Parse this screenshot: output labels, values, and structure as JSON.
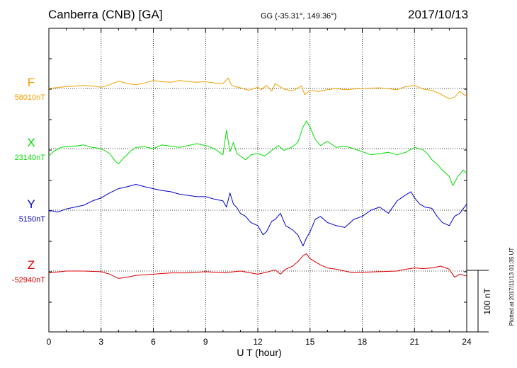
{
  "header": {
    "station": "Canberra (CNB)  [GA]",
    "coords": "GG (-35.31°, 149.36°)",
    "date": "2017/10/13"
  },
  "side_note": "Plotted at 2017/11/13 01:35 UT",
  "scale_bar_label": "100 nT",
  "colors": {
    "F": "#f0a000",
    "X": "#00dd00",
    "Y": "#0000cc",
    "Z": "#dd0000"
  },
  "chart_data": {
    "type": "line",
    "xlabel": "U T (hour)",
    "xlim": [
      0,
      24
    ],
    "xticks": [
      "0",
      "3",
      "6",
      "9",
      "12",
      "15",
      "18",
      "21",
      "24"
    ],
    "grid": true,
    "scale_nT_per_division": 100,
    "series": [
      {
        "name": "F",
        "baseline_label": "58010nT",
        "x": [
          0,
          1,
          2,
          2.5,
          3,
          3.5,
          4,
          4.5,
          5,
          5.5,
          6,
          6.5,
          7,
          7.5,
          8,
          8.5,
          9,
          9.5,
          10,
          10.3,
          10.5,
          10.7,
          11,
          11.5,
          12,
          12.2,
          12.5,
          12.8,
          13,
          13.5,
          14,
          14.5,
          14.7,
          15,
          15.5,
          16,
          16.5,
          17,
          18,
          19,
          20,
          20.5,
          21,
          21.5,
          22,
          22.5,
          23,
          23.3,
          23.6,
          24
        ],
        "values": [
          0,
          3,
          5,
          4,
          2,
          6,
          12,
          8,
          6,
          9,
          13,
          11,
          10,
          13,
          11,
          10,
          11,
          9,
          8,
          17,
          5,
          3,
          1,
          -3,
          2,
          -2,
          5,
          -4,
          8,
          -1,
          -4,
          4,
          -10,
          -3,
          -5,
          -2,
          0,
          -2,
          0,
          1,
          -2,
          3,
          5,
          -1,
          -3,
          -9,
          -17,
          -14,
          -5,
          -13
        ]
      },
      {
        "name": "X",
        "baseline_label": "23140nT",
        "x": [
          0,
          0.3,
          0.7,
          1,
          1.5,
          2,
          2.5,
          3,
          3.5,
          3.8,
          4,
          4.3,
          4.7,
          5,
          5.5,
          6,
          6.5,
          7,
          7.5,
          8,
          8.5,
          9,
          9.5,
          10,
          10.2,
          10.4,
          10.6,
          10.8,
          11,
          11.3,
          11.6,
          12,
          12.4,
          12.8,
          13.2,
          13.5,
          14,
          14.3,
          14.6,
          14.8,
          15,
          15.3,
          15.6,
          16,
          16.5,
          17,
          17.5,
          18,
          18.5,
          19,
          19.5,
          20,
          20.5,
          21,
          21.5,
          21.8,
          22,
          22.3,
          22.6,
          23,
          23.2,
          23.5,
          23.8,
          24
        ],
        "values": [
          -12,
          -4,
          2,
          3,
          4,
          6,
          2,
          0,
          -8,
          -20,
          -25,
          -15,
          -4,
          2,
          3,
          0,
          6,
          4,
          2,
          5,
          8,
          5,
          0,
          -10,
          30,
          -5,
          10,
          -8,
          -12,
          -18,
          -10,
          -8,
          -12,
          -3,
          5,
          -3,
          3,
          10,
          35,
          45,
          35,
          15,
          5,
          12,
          2,
          4,
          0,
          -5,
          -10,
          -8,
          -6,
          -10,
          -6,
          2,
          -2,
          -10,
          -18,
          -25,
          -35,
          -45,
          -60,
          -45,
          -35,
          -40
        ]
      },
      {
        "name": "Y",
        "baseline_label": "5150nT",
        "x": [
          0,
          0.5,
          1,
          1.5,
          2,
          2.5,
          3,
          3.5,
          4,
          4.5,
          5,
          5.5,
          6,
          6.5,
          7,
          7.5,
          8,
          8.5,
          9,
          9.5,
          10,
          10.2,
          10.4,
          10.6,
          10.8,
          11,
          11.3,
          11.6,
          12,
          12.3,
          12.5,
          12.8,
          13,
          13.3,
          13.6,
          14,
          14.3,
          14.6,
          14.8,
          15,
          15.3,
          15.6,
          16,
          16.5,
          17,
          17.5,
          18,
          18.5,
          19,
          19.5,
          20,
          20.5,
          20.8,
          21,
          21.3,
          21.6,
          22,
          22.3,
          22.6,
          23,
          23.3,
          23.6,
          24
        ],
        "values": [
          0,
          -3,
          2,
          5,
          8,
          15,
          20,
          28,
          35,
          38,
          42,
          38,
          35,
          32,
          30,
          26,
          24,
          22,
          22,
          18,
          15,
          5,
          28,
          10,
          4,
          -5,
          -10,
          -20,
          -25,
          -40,
          -35,
          -18,
          -15,
          -5,
          -25,
          -32,
          -40,
          -58,
          -45,
          -35,
          -15,
          -10,
          -20,
          -25,
          -28,
          -15,
          -10,
          0,
          5,
          -5,
          15,
          25,
          30,
          20,
          10,
          5,
          3,
          -10,
          -20,
          -25,
          -10,
          -5,
          10
        ]
      },
      {
        "name": "Z",
        "baseline_label": "-52940nT",
        "x": [
          0,
          1,
          2,
          3,
          3.5,
          4,
          4.5,
          5,
          6,
          7,
          8,
          9,
          10,
          11,
          12,
          12.5,
          13,
          13.3,
          13.6,
          14,
          14.3,
          14.6,
          14.8,
          15,
          15.3,
          15.6,
          16,
          16.5,
          17,
          17.5,
          18,
          19,
          20,
          20.5,
          21,
          21.5,
          22,
          22.5,
          23,
          23.3,
          23.6,
          24
        ],
        "values": [
          -3,
          0,
          0,
          -1,
          -5,
          -12,
          -10,
          -7,
          -5,
          -3,
          -3,
          -1,
          -3,
          0,
          -5,
          -2,
          2,
          -5,
          3,
          8,
          15,
          25,
          28,
          20,
          15,
          10,
          5,
          3,
          0,
          -3,
          -2,
          -1,
          0,
          3,
          5,
          4,
          5,
          8,
          3,
          -10,
          -5,
          -8
        ]
      }
    ]
  }
}
